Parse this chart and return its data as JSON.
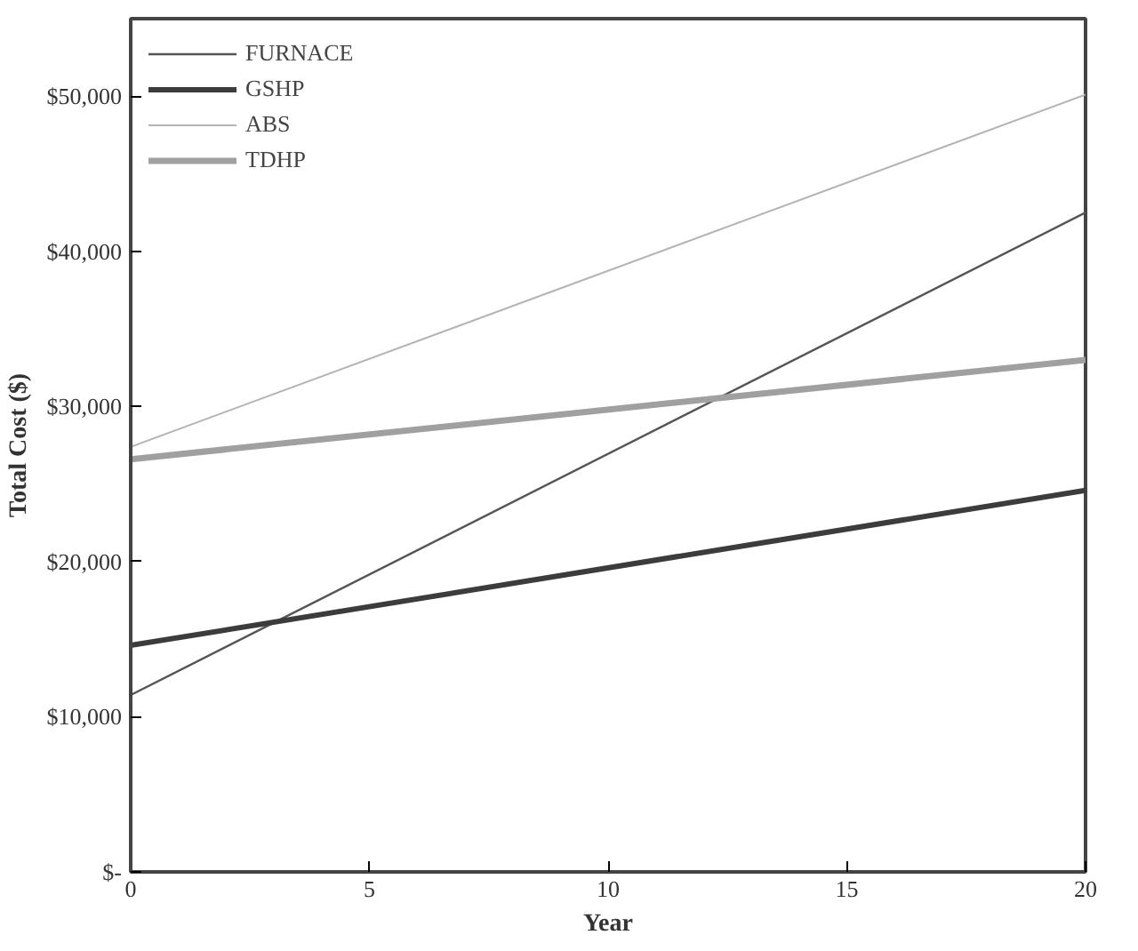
{
  "chart_data": {
    "type": "line",
    "xlabel": "Year",
    "ylabel": "Total Cost ($)",
    "x": [
      0,
      20
    ],
    "series": [
      {
        "name": "FURNACE",
        "color": "#555555",
        "values": [
          11400,
          42500
        ]
      },
      {
        "name": "GSHP",
        "color": "#3c3c3c",
        "values": [
          14600,
          24600
        ]
      },
      {
        "name": "ABS",
        "color": "#b4b4b4",
        "values": [
          27400,
          50100
        ]
      },
      {
        "name": "TDHP",
        "color": "#a0a0a0",
        "values": [
          26600,
          33000
        ]
      }
    ],
    "xlim": [
      0,
      20
    ],
    "xticks": [
      0,
      5,
      10,
      15,
      20
    ],
    "ylim": [
      0,
      55000
    ],
    "yticks": [
      {
        "value": 0,
        "label": "$-"
      },
      {
        "value": 10000,
        "label": "$10,000"
      },
      {
        "value": 20000,
        "label": "$20,000"
      },
      {
        "value": 30000,
        "label": "$30,000"
      },
      {
        "value": 40000,
        "label": "$40,000"
      },
      {
        "value": 50000,
        "label": "$50,000"
      }
    ],
    "grid": false,
    "legend": "top left",
    "line_style": "solid",
    "marker": "none"
  }
}
